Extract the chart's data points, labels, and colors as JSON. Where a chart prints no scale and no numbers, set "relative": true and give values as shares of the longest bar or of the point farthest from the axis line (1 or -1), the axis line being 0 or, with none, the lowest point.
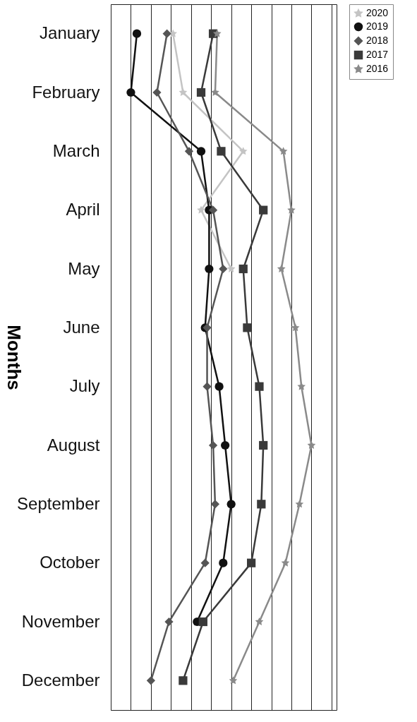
{
  "chart_data": {
    "type": "line",
    "orientation": "horizontal",
    "relative": true,
    "ylabel": "Months",
    "categories": [
      "January",
      "February",
      "March",
      "April",
      "May",
      "June",
      "July",
      "August",
      "September",
      "October",
      "November",
      "December"
    ],
    "series": [
      {
        "name": "2020",
        "color": "#c4c4c4",
        "marker": "star",
        "values": [
          0.31,
          0.36,
          0.66,
          0.45,
          0.6,
          null,
          null,
          null,
          null,
          null,
          null,
          null
        ]
      },
      {
        "name": "2019",
        "color": "#111111",
        "marker": "circle",
        "values": [
          0.13,
          0.1,
          0.45,
          0.49,
          0.49,
          0.47,
          0.54,
          0.57,
          0.6,
          0.56,
          0.43,
          null
        ]
      },
      {
        "name": "2018",
        "color": "#555555",
        "marker": "diamond",
        "values": [
          0.28,
          0.23,
          0.39,
          0.51,
          0.56,
          0.48,
          0.48,
          0.51,
          0.52,
          0.47,
          0.29,
          0.2
        ]
      },
      {
        "name": "2017",
        "color": "#3a3a3a",
        "marker": "square",
        "values": [
          0.51,
          0.45,
          0.55,
          0.76,
          0.66,
          0.68,
          0.74,
          0.76,
          0.75,
          0.7,
          0.46,
          0.36
        ]
      },
      {
        "name": "2016",
        "color": "#8a8a8a",
        "marker": "star",
        "values": [
          0.53,
          0.52,
          0.86,
          0.9,
          0.85,
          0.92,
          0.95,
          1,
          0.94,
          0.87,
          0.74,
          0.61
        ]
      }
    ],
    "grid": true,
    "legend": "right",
    "line_style": "solid"
  }
}
